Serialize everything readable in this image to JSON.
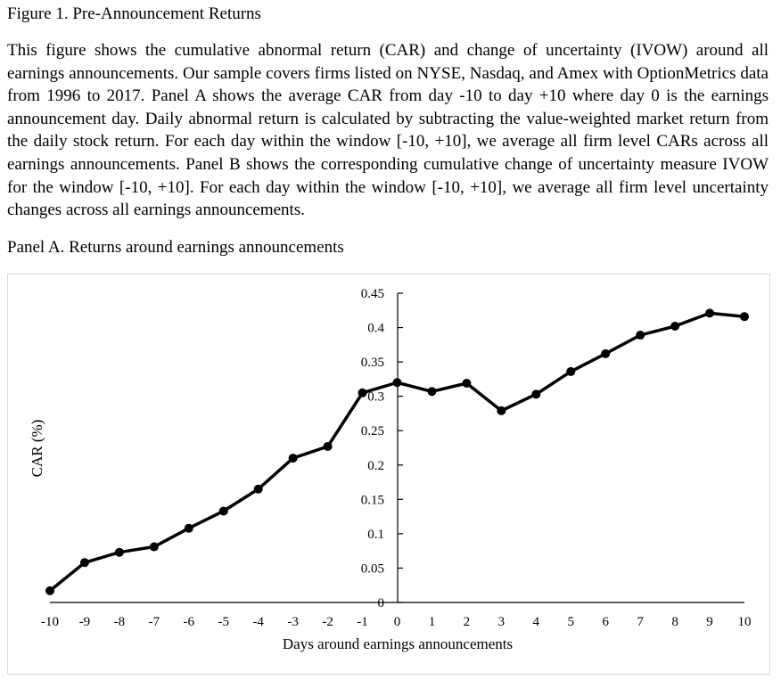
{
  "figure": {
    "title": "Figure 1. Pre-Announcement Returns",
    "caption": "This figure shows the cumulative abnormal return (CAR) and change of uncertainty (IVOW) around all earnings announcements. Our sample covers firms listed on NYSE, Nasdaq, and Amex with OptionMetrics data from 1996 to 2017. Panel A shows the average CAR from day -10 to day +10 where day 0 is the earnings announcement day. Daily abnormal return is calculated by subtracting the value-weighted market return from the daily stock return. For each day within the window [-10, +10], we average all firm level CARs across all earnings announcements. Panel B shows the corresponding cumulative change of uncertainty measure IVOW for the window [-10, +10]. For each day within the window [-10, +10], we average all firm level uncertainty changes across all earnings announcements.",
    "panel_title": "Panel A. Returns around earnings announcements"
  },
  "chart_data": {
    "type": "line",
    "title": "Panel A. Returns around earnings announcements",
    "xlabel": "Days around earnings announcements",
    "ylabel": "CAR (%)",
    "x": [
      -10,
      -9,
      -8,
      -7,
      -6,
      -5,
      -4,
      -3,
      -2,
      -1,
      0,
      1,
      2,
      3,
      4,
      5,
      6,
      7,
      8,
      9,
      10
    ],
    "series": [
      {
        "name": "CAR",
        "values": [
          0.017,
          0.058,
          0.073,
          0.081,
          0.108,
          0.133,
          0.165,
          0.21,
          0.227,
          0.305,
          0.32,
          0.307,
          0.319,
          0.279,
          0.303,
          0.336,
          0.362,
          0.389,
          0.402,
          0.421,
          0.416
        ]
      }
    ],
    "xticks": [
      "-10",
      "-9",
      "-8",
      "-7",
      "-6",
      "-5",
      "-4",
      "-3",
      "-2",
      "-1",
      "0",
      "1",
      "2",
      "3",
      "4",
      "5",
      "6",
      "7",
      "8",
      "9",
      "10"
    ],
    "yticks": [
      "0",
      "0.05",
      "0.1",
      "0.15",
      "0.2",
      "0.25",
      "0.3",
      "0.35",
      "0.4",
      "0.45"
    ],
    "ylim": [
      0,
      0.45
    ],
    "xlim": [
      -10,
      10
    ],
    "grid": false,
    "legend": "none",
    "line_color": "#000000"
  }
}
